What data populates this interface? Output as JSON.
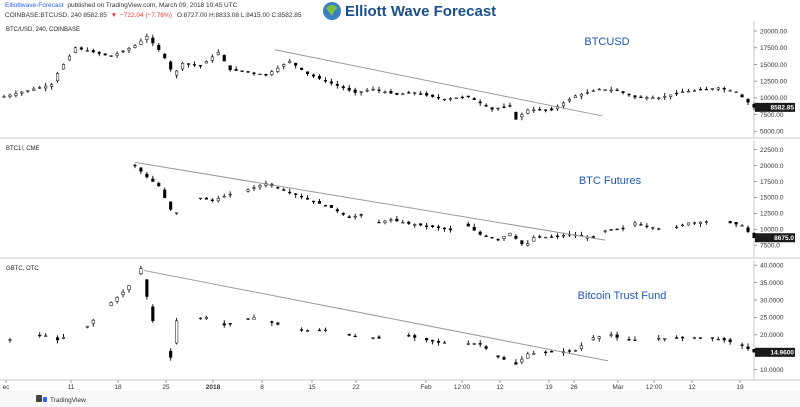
{
  "header": {
    "publisher": "Elliottwave-Forecast",
    "published_text": "published on TradingView.com, March 09, 2018 10:45 UTC",
    "symbol_line": "COINBASE:BTCUSD, 240  8582.85",
    "change": "−722.04 (−7.76%)",
    "ohlc": "O:8727.00  H:8833.08  L:8415.00  C:8582.85"
  },
  "logo": {
    "text": "Elliott Wave Forecast",
    "icon": "globe-icon"
  },
  "footer": {
    "text": "TradingView",
    "icon": "tradingview-logo-icon"
  },
  "colors": {
    "title": "#1f58b8",
    "candle": "#000000",
    "trendline": "#9a9a9a",
    "tag_bg": "#1a1a1a",
    "link": "#2962ff"
  },
  "x_axis": {
    "labels": [
      "ec",
      "11",
      "18",
      "25",
      "2018",
      "8",
      "15",
      "22",
      "Feb",
      "12:00",
      "12",
      "19",
      "26",
      "Mar",
      "12:00",
      "12",
      "19"
    ],
    "bold": [
      false,
      false,
      false,
      false,
      true,
      false,
      false,
      false,
      false,
      false,
      false,
      false,
      false,
      false,
      false,
      false,
      false
    ]
  },
  "chart_data": [
    {
      "type": "candlestick",
      "label": "BTC/USD, 240, COINBASE",
      "title": "BTCUSD",
      "last_price": "8582.85",
      "y_ticks": [
        "20000.00",
        "17500.00",
        "15000.00",
        "12500.00",
        "10000.00",
        "7500.00",
        "5000.00"
      ],
      "ylim": [
        4000,
        21500
      ],
      "gaps": [],
      "keypoints": [
        [
          0,
          10200
        ],
        [
          8,
          12000
        ],
        [
          9.2,
          14000
        ],
        [
          12,
          17500
        ],
        [
          18,
          16200
        ],
        [
          22,
          17800
        ],
        [
          24,
          19200
        ],
        [
          26,
          17200
        ],
        [
          27.8,
          15000
        ],
        [
          28.3,
          13200
        ],
        [
          30,
          15200
        ],
        [
          33,
          14800
        ],
        [
          36,
          16800
        ],
        [
          38,
          14200
        ],
        [
          41,
          13900
        ],
        [
          44,
          13400
        ],
        [
          48,
          15500
        ],
        [
          51,
          13600
        ],
        [
          55,
          12200
        ],
        [
          59,
          10800
        ],
        [
          62,
          11300
        ],
        [
          66,
          10500
        ],
        [
          69,
          10800
        ],
        [
          74,
          9800
        ],
        [
          78,
          10200
        ],
        [
          82,
          8300
        ],
        [
          85,
          8800
        ],
        [
          86,
          6800
        ],
        [
          88,
          8200
        ],
        [
          92,
          8200
        ],
        [
          96,
          10300
        ],
        [
          100,
          11300
        ],
        [
          103,
          11100
        ],
        [
          106,
          10100
        ],
        [
          110,
          10000
        ],
        [
          114,
          10900
        ],
        [
          120,
          11500
        ],
        [
          123,
          10900
        ],
        [
          126,
          8600
        ]
      ],
      "trendline": [
        [
          45.5,
          17200
        ],
        [
          100.5,
          7300
        ]
      ]
    },
    {
      "type": "candlestick",
      "label": "BTC1!, CME",
      "title": "BTC Futures",
      "last_price": "8675.0",
      "y_ticks": [
        "22500.0",
        "20000.0",
        "17500.0",
        "15000.0",
        "12500.0",
        "10000.0",
        "7500.0"
      ],
      "ylim": [
        5500,
        24000
      ],
      "gaps": [
        [
          29.5,
          32.5
        ],
        [
          38,
          41
        ],
        [
          60,
          62.5
        ],
        [
          75,
          77.5
        ],
        [
          99,
          100.5
        ],
        [
          104.5,
          106
        ],
        [
          110,
          112.5
        ],
        [
          118.5,
          121.5
        ]
      ],
      "keypoints": [
        [
          22,
          20000
        ],
        [
          24,
          18200
        ],
        [
          26,
          16800
        ],
        [
          28.5,
          12200
        ],
        [
          29.5,
          13000
        ],
        [
          32.5,
          15000
        ],
        [
          35,
          14500
        ],
        [
          38,
          15500
        ],
        [
          41,
          16200
        ],
        [
          44,
          17200
        ],
        [
          48,
          15800
        ],
        [
          51,
          14700
        ],
        [
          55,
          13400
        ],
        [
          58,
          11800
        ],
        [
          60,
          12300
        ],
        [
          62.5,
          11000
        ],
        [
          65,
          11500
        ],
        [
          68,
          10900
        ],
        [
          72,
          10400
        ],
        [
          75,
          9900
        ],
        [
          77.5,
          10800
        ],
        [
          80,
          9200
        ],
        [
          83,
          8400
        ],
        [
          85,
          9400
        ],
        [
          87.5,
          7300
        ],
        [
          89,
          8700
        ],
        [
          92,
          8800
        ],
        [
          95,
          9200
        ],
        [
          99,
          8600
        ],
        [
          100.5,
          9700
        ],
        [
          104.5,
          10200
        ],
        [
          106,
          11000
        ],
        [
          108,
          10500
        ],
        [
          110,
          10100
        ],
        [
          112.5,
          10200
        ],
        [
          115,
          11000
        ],
        [
          118.5,
          11200
        ],
        [
          121.5,
          11100
        ],
        [
          124,
          10600
        ],
        [
          126,
          8675
        ]
      ],
      "trendline": [
        [
          22,
          20500
        ],
        [
          101,
          8300
        ]
      ]
    },
    {
      "type": "candlestick",
      "label": "GBTC, OTC",
      "title": "Bitcoin Trust Fund",
      "last_price": "14.9600",
      "y_ticks": [
        "40.0000",
        "35.0000",
        "30.0000",
        "25.0000",
        "20.0000",
        "15.0000",
        "10.0000"
      ],
      "ylim": [
        7,
        41.5
      ],
      "gaps": [
        [
          1.6,
          6
        ],
        [
          7.6,
          8.5
        ],
        [
          10,
          13.5
        ],
        [
          15.3,
          17.5
        ],
        [
          19,
          20
        ],
        [
          21.2,
          23
        ],
        [
          25.2,
          27.5
        ],
        [
          29.2,
          33
        ],
        [
          34.5,
          36.5
        ],
        [
          38,
          41
        ],
        [
          42.5,
          45
        ],
        [
          46.5,
          50
        ],
        [
          51.5,
          53
        ],
        [
          54.5,
          57.5
        ],
        [
          59,
          62
        ],
        [
          63.5,
          67.5
        ],
        [
          69,
          71
        ],
        [
          72.5,
          73
        ],
        [
          74.5,
          78
        ],
        [
          79.5,
          80
        ],
        [
          81.5,
          82.5
        ],
        [
          84,
          85.5
        ],
        [
          87,
          88
        ],
        [
          89.5,
          91
        ],
        [
          92.5,
          94
        ],
        [
          95.5,
          96
        ],
        [
          97.5,
          99
        ],
        [
          100.5,
          102
        ],
        [
          103.5,
          105
        ],
        [
          106.5,
          110
        ],
        [
          111.5,
          113
        ],
        [
          114.5,
          116
        ],
        [
          117.5,
          119
        ],
        [
          120.5,
          121
        ],
        [
          122.5,
          124
        ]
      ],
      "keypoints": [
        [
          0.5,
          18.5
        ],
        [
          6.5,
          20
        ],
        [
          9,
          18.5
        ],
        [
          14,
          22.5
        ],
        [
          17.8,
          29
        ],
        [
          20.5,
          33
        ],
        [
          23,
          39
        ],
        [
          24,
          31
        ],
        [
          25,
          24
        ],
        [
          28,
          13.5
        ],
        [
          29,
          24
        ],
        [
          34,
          25
        ],
        [
          37,
          22.8
        ],
        [
          42,
          25
        ],
        [
          46,
          23
        ],
        [
          51,
          21
        ],
        [
          55,
          21.5
        ],
        [
          59,
          19.5
        ],
        [
          63,
          19
        ],
        [
          67,
          20
        ],
        [
          71,
          18.5
        ],
        [
          73,
          17.8
        ],
        [
          78,
          17.5
        ],
        [
          80,
          17.5
        ],
        [
          82.5,
          14
        ],
        [
          86,
          11.5
        ],
        [
          88,
          14.5
        ],
        [
          91,
          15
        ],
        [
          93,
          15
        ],
        [
          96,
          15.5
        ],
        [
          98.5,
          19
        ],
        [
          102,
          20
        ],
        [
          104,
          18.5
        ],
        [
          106,
          18.5
        ],
        [
          110,
          19
        ],
        [
          113,
          19
        ],
        [
          116,
          19.2
        ],
        [
          119,
          19
        ],
        [
          121,
          18.5
        ],
        [
          124,
          17
        ],
        [
          126,
          15
        ]
      ],
      "trendline": [
        [
          23.5,
          38.5
        ],
        [
          101.5,
          12.5
        ]
      ]
    }
  ]
}
